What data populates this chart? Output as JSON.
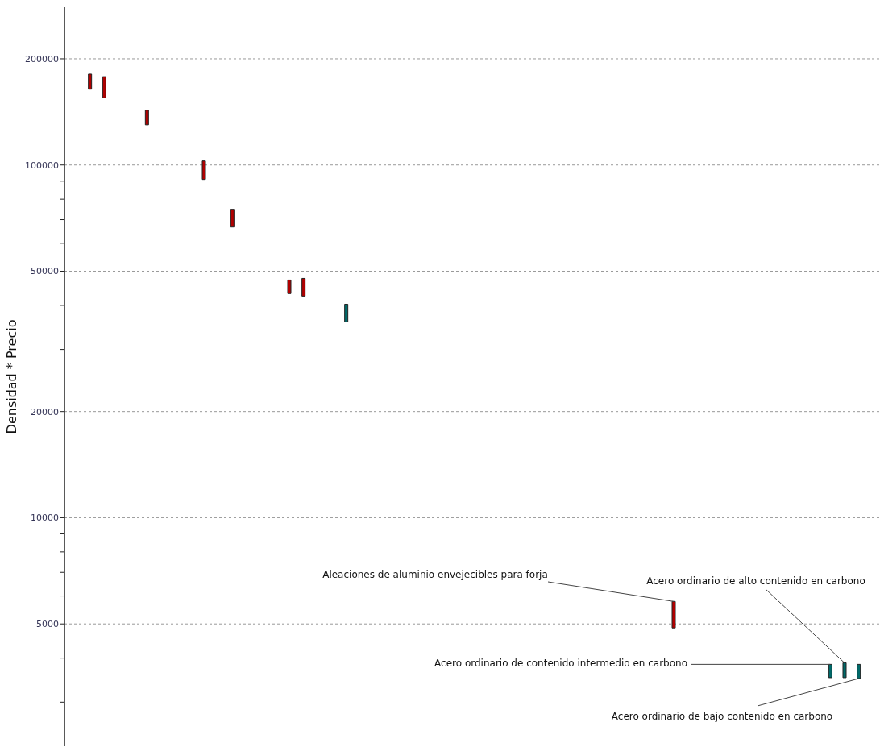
{
  "chart_data": {
    "type": "bar",
    "ylabel": "Densidad * Precio",
    "categories": [
      null,
      null,
      null,
      null,
      null,
      null,
      null,
      null,
      null,
      null,
      null,
      null,
      null,
      null,
      null,
      null,
      null,
      null,
      null,
      null,
      null,
      null,
      null,
      null,
      null,
      null,
      null,
      null,
      null,
      null,
      null,
      null,
      null,
      null,
      null,
      null,
      null,
      null,
      null,
      null,
      null,
      null,
      null,
      null,
      null,
      null,
      null,
      null,
      null,
      null,
      null,
      null,
      null,
      null,
      null,
      null,
      null
    ],
    "base": [
      null,
      164000,
      155000,
      null,
      null,
      130000,
      null,
      null,
      null,
      91000,
      null,
      66700,
      null,
      null,
      null,
      43200,
      42500,
      null,
      null,
      35900,
      null,
      null,
      null,
      null,
      null,
      null,
      null,
      null,
      null,
      null,
      null,
      null,
      null,
      null,
      null,
      null,
      null,
      null,
      null,
      null,
      null,
      null,
      4870,
      null,
      null,
      null,
      null,
      null,
      null,
      null,
      null,
      null,
      null,
      3520,
      3520,
      3500,
      null
    ],
    "values": [
      null,
      17000,
      23000,
      null,
      null,
      13000,
      null,
      null,
      null,
      11700,
      null,
      8200,
      null,
      null,
      null,
      4000,
      5200,
      null,
      null,
      4400,
      null,
      null,
      null,
      null,
      null,
      null,
      null,
      null,
      null,
      null,
      null,
      null,
      null,
      null,
      null,
      null,
      null,
      null,
      null,
      null,
      null,
      null,
      920,
      null,
      null,
      null,
      null,
      null,
      null,
      null,
      null,
      null,
      null,
      320,
      360,
      340,
      null
    ],
    "colors": [
      null,
      "#b00000",
      "#b00000",
      null,
      null,
      "#b00000",
      null,
      null,
      null,
      "#b00000",
      null,
      "#b00000",
      null,
      null,
      null,
      "#b00000",
      "#b00000",
      null,
      null,
      "#006a6a",
      null,
      null,
      null,
      null,
      null,
      null,
      null,
      null,
      null,
      null,
      null,
      null,
      null,
      null,
      null,
      null,
      null,
      null,
      null,
      null,
      null,
      null,
      "#b00000",
      null,
      null,
      null,
      null,
      null,
      null,
      null,
      null,
      null,
      null,
      "#006a6a",
      "#006a6a",
      "#006a6a",
      null
    ],
    "log": true,
    "ylim": [
      2250,
      280000
    ],
    "yticks": [
      {
        "value": 3000,
        "label": null
      },
      {
        "value": 4000,
        "label": null
      },
      5000,
      {
        "value": 6000,
        "label": null
      },
      {
        "value": 7000,
        "label": null
      },
      {
        "value": 8000,
        "label": null
      },
      {
        "value": 9000,
        "label": null
      },
      10000,
      20000,
      {
        "value": 30000,
        "label": null
      },
      {
        "value": 40000,
        "label": null
      },
      50000,
      {
        "value": 60000,
        "label": null
      },
      {
        "value": 70000,
        "label": null
      },
      {
        "value": 80000,
        "label": null
      },
      {
        "value": 90000,
        "label": null
      },
      100000,
      200000
    ],
    "grid": true,
    "tick_labels": "y",
    "annotations": [
      "Aleaciones de aluminio envejecibles para forja",
      "Acero ordinario de alto contenido en carbono",
      "Acero ordinario de contenido intermedio en carbono",
      "Acero ordinario de bajo contenido en carbono"
    ]
  }
}
